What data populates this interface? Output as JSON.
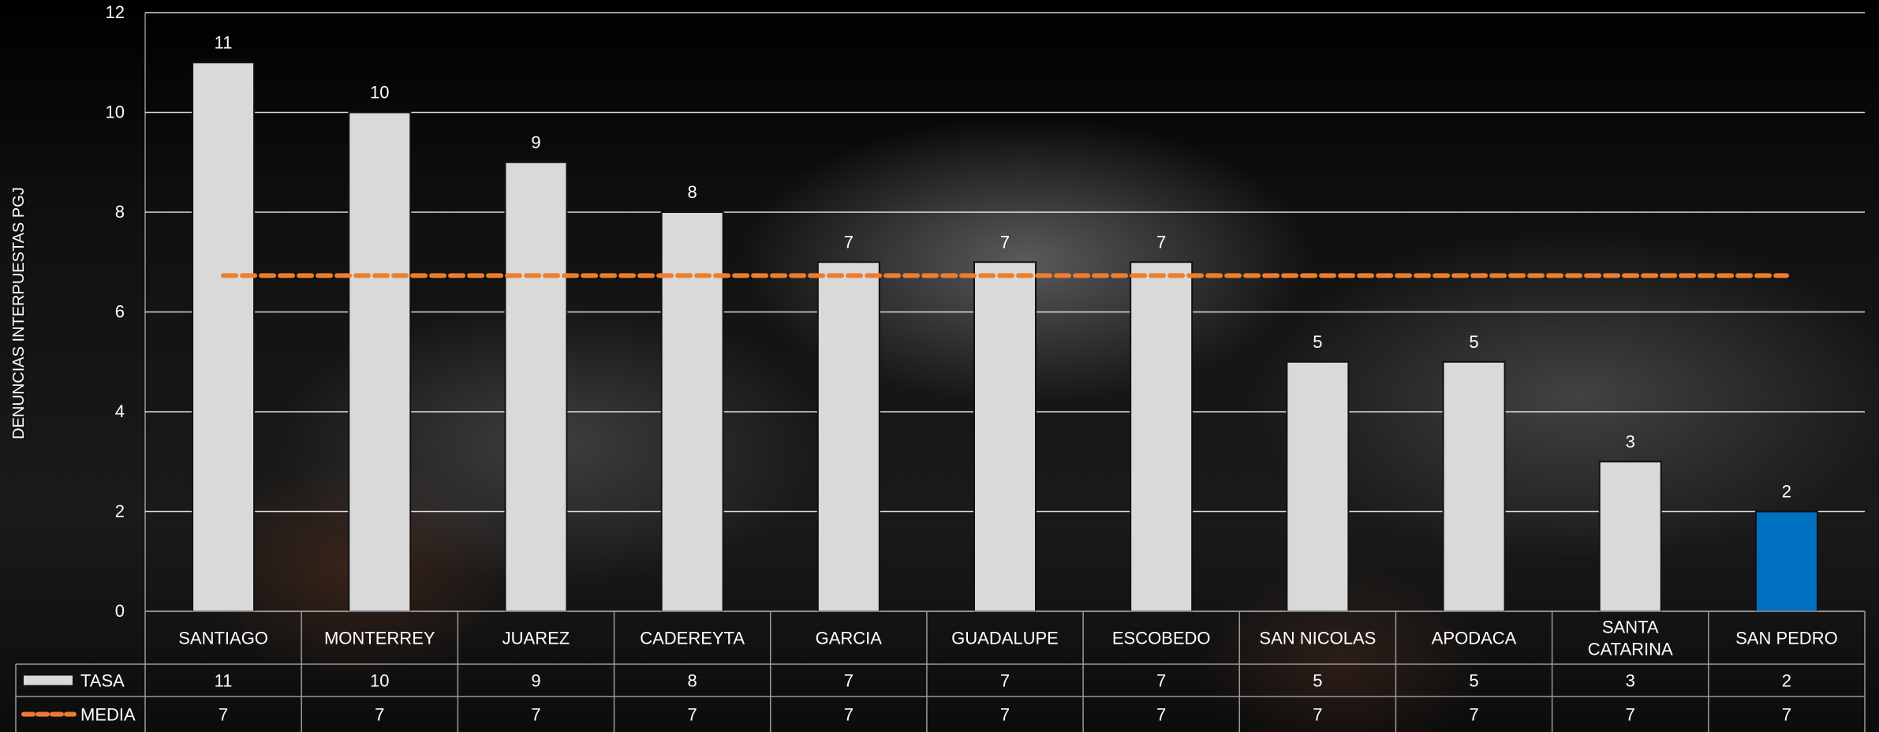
{
  "chart_data": {
    "type": "bar",
    "ylabel": "DENUNCIAS INTERPUESTAS PGJ",
    "ylim": [
      0,
      12
    ],
    "yticks": [
      0,
      2,
      4,
      6,
      8,
      10,
      12
    ],
    "grid": true,
    "categories": [
      [
        "SANTIAGO"
      ],
      [
        "MONTERREY"
      ],
      [
        "JUAREZ"
      ],
      [
        "CADEREYTA"
      ],
      [
        "GARCIA"
      ],
      [
        "GUADALUPE"
      ],
      [
        "ESCOBEDO"
      ],
      [
        "SAN NICOLAS"
      ],
      [
        "APODACA"
      ],
      [
        "SANTA",
        "CATARINA"
      ],
      [
        "SAN PEDRO"
      ]
    ],
    "series": [
      {
        "name": "TASA",
        "kind": "bar",
        "values": [
          11,
          10,
          9,
          8,
          7,
          7,
          7,
          5,
          5,
          3,
          2
        ],
        "table_values": [
          "11",
          "10",
          "9",
          "8",
          "7",
          "7",
          "7",
          "5",
          "5",
          "3",
          "2"
        ],
        "color": "#d9d9d9",
        "highlight_color": "#0070c0",
        "highlight_index": 10
      },
      {
        "name": "MEDIA",
        "kind": "line-dashed",
        "values": [
          6.73,
          6.73,
          6.73,
          6.73,
          6.73,
          6.73,
          6.73,
          6.73,
          6.73,
          6.73,
          6.73
        ],
        "table_values": [
          "7",
          "7",
          "7",
          "7",
          "7",
          "7",
          "7",
          "7",
          "7",
          "7",
          "7"
        ],
        "color": "#ed7d31"
      }
    ],
    "legend": "data-table"
  }
}
